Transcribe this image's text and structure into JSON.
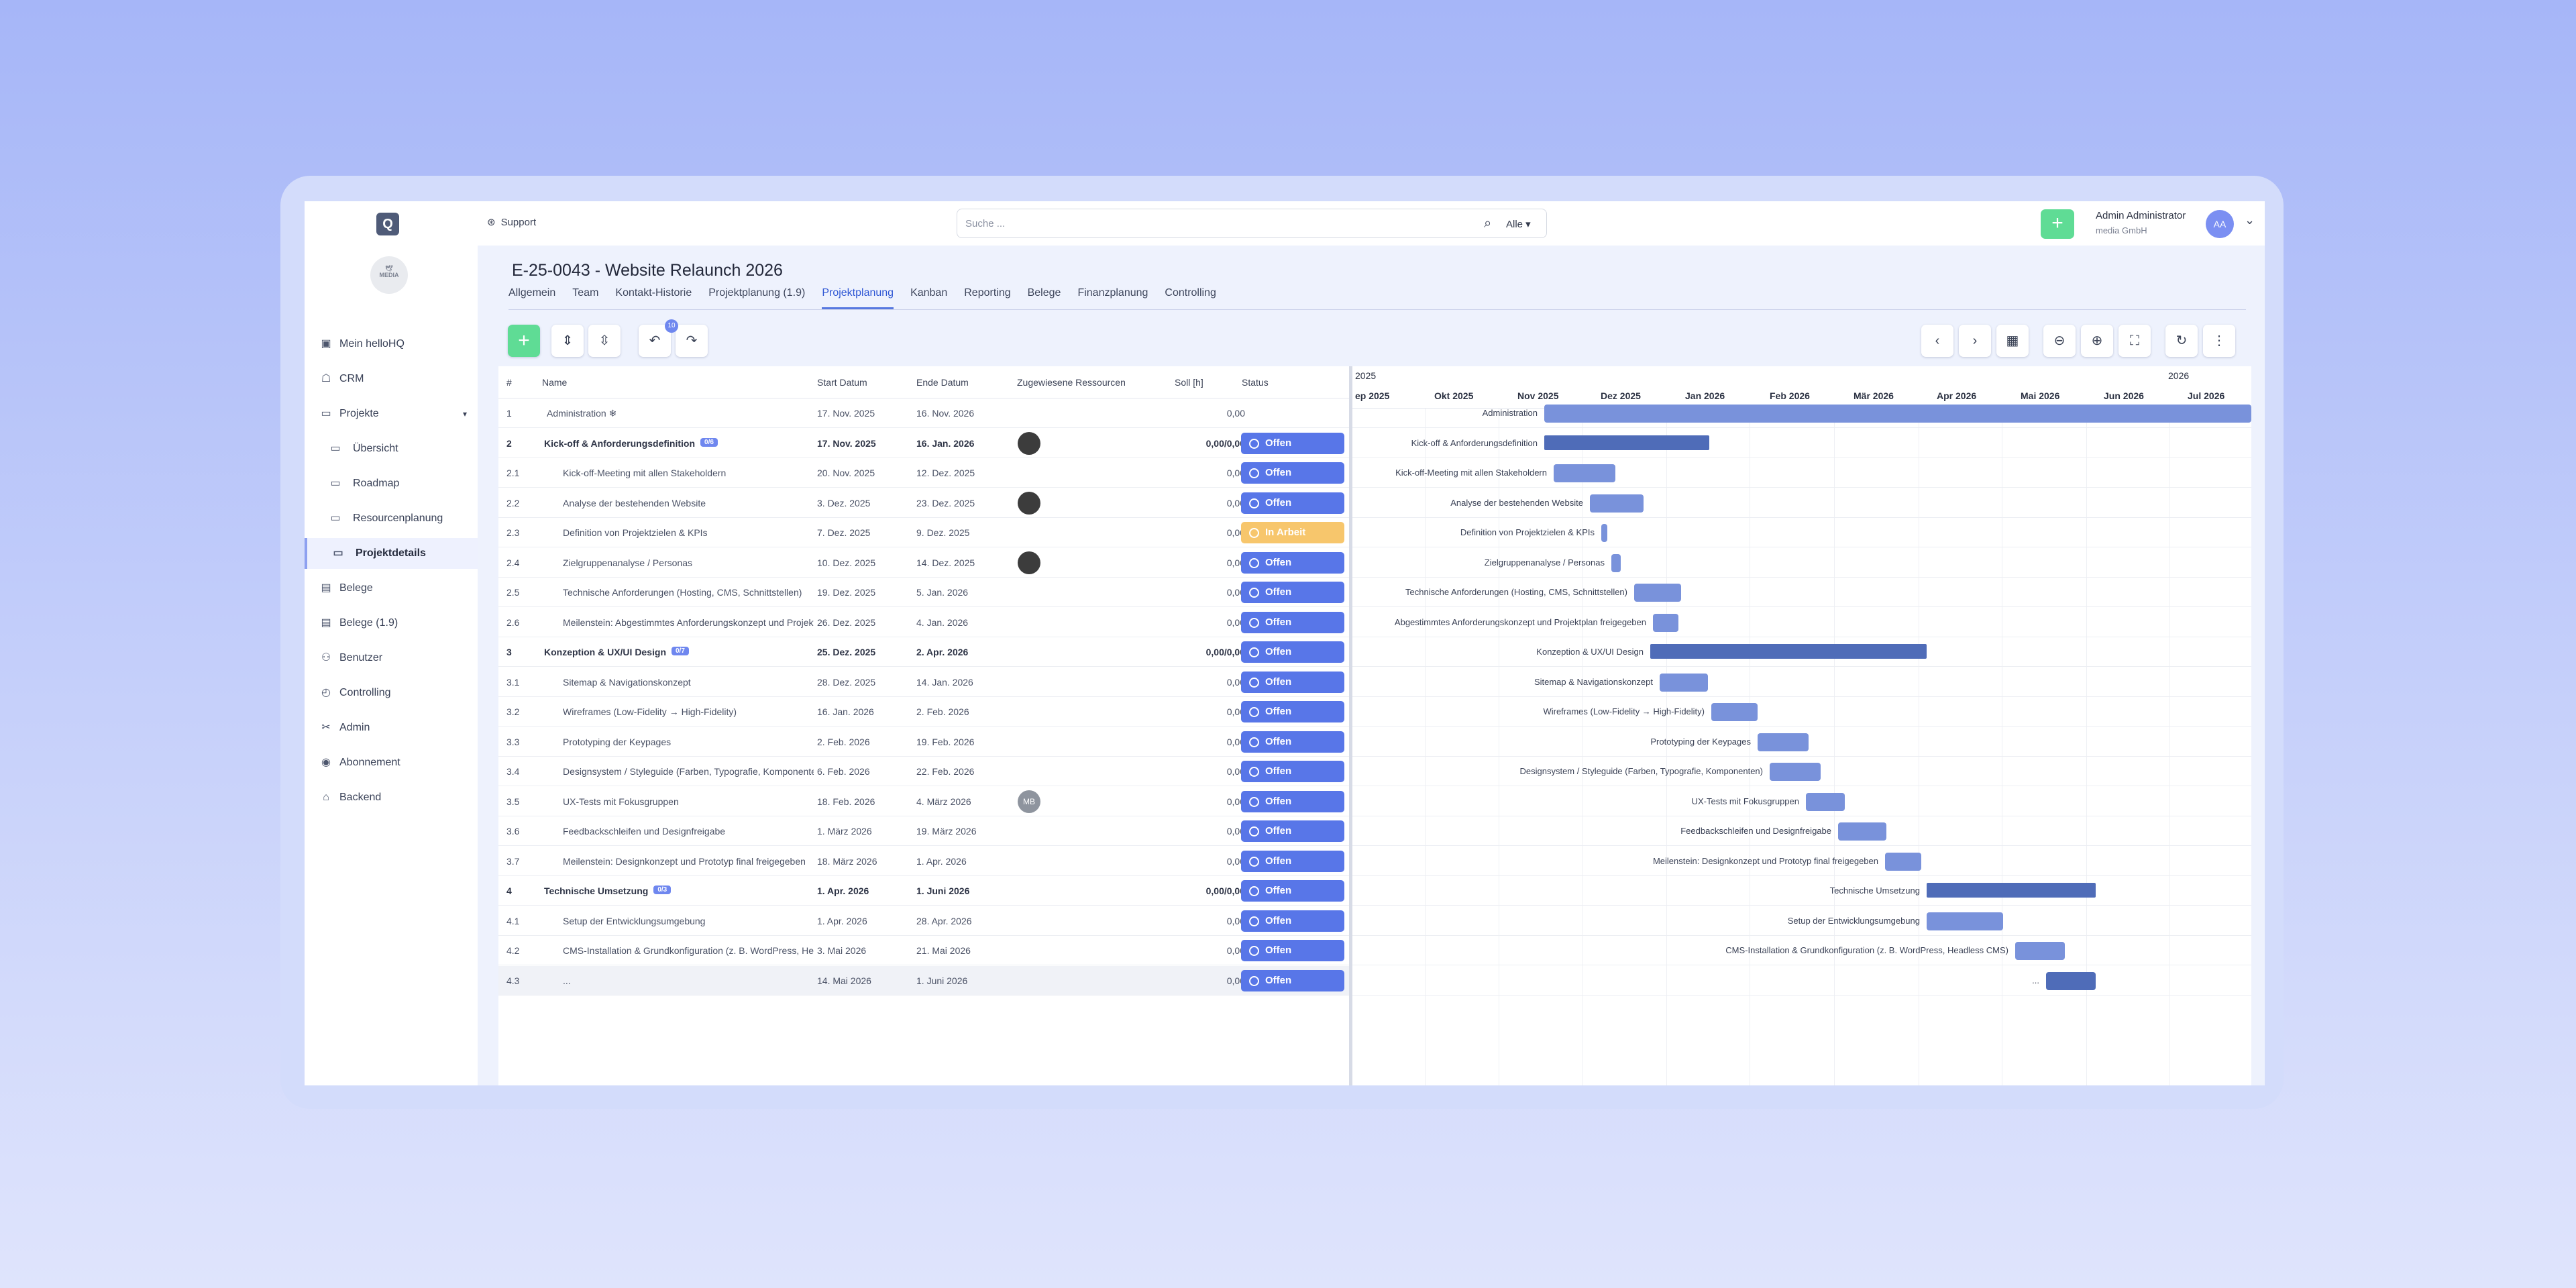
{
  "support": "Support",
  "search": {
    "placeholder": "Suche ...",
    "scope": "Alle"
  },
  "user": {
    "name": "Admin Administrator",
    "org": "media GmbH",
    "initials": "AA"
  },
  "sidebar": {
    "items": [
      {
        "label": "Mein helloHQ",
        "icon": "portfolio-icon"
      },
      {
        "label": "CRM",
        "icon": "contacts-icon"
      },
      {
        "label": "Projekte",
        "icon": "projects-icon"
      },
      {
        "label": "Übersicht",
        "icon": "monitor-icon"
      },
      {
        "label": "Roadmap",
        "icon": "roadmap-icon"
      },
      {
        "label": "Resourcenplanung",
        "icon": "resource-icon"
      },
      {
        "label": "Projektdetails",
        "icon": "details-icon"
      },
      {
        "label": "Belege",
        "icon": "document-icon"
      },
      {
        "label": "Belege (1.9)",
        "icon": "document-icon"
      },
      {
        "label": "Benutzer",
        "icon": "users-icon"
      },
      {
        "label": "Controlling",
        "icon": "controlling-icon"
      },
      {
        "label": "Admin",
        "icon": "tools-icon"
      },
      {
        "label": "Abonnement",
        "icon": "subscription-icon"
      },
      {
        "label": "Backend",
        "icon": "backend-icon"
      }
    ]
  },
  "project": {
    "title": "E-25-0043 - Website Relaunch 2026"
  },
  "tabs": [
    "Allgemein",
    "Team",
    "Kontakt-Historie",
    "Projektplanung (1.9)",
    "Projektplanung",
    "Kanban",
    "Reporting",
    "Belege",
    "Finanzplanung",
    "Controlling"
  ],
  "toolbar": {
    "redo_badge": "10"
  },
  "grid": {
    "headers": [
      "#",
      "Name",
      "Start Datum",
      "Ende Datum",
      "Zugewiesene Ressourcen",
      "Soll [h]",
      "Status"
    ],
    "rows": [
      {
        "num": "1",
        "name": "Administration ❄",
        "start": "17. Nov. 2025",
        "end": "16. Nov. 2026",
        "soll": "0,00",
        "status": ""
      },
      {
        "num": "2",
        "name": "Kick-off & Anforderungsdefinition",
        "count": "0/6",
        "start": "17. Nov. 2025",
        "end": "16. Jan. 2026",
        "soll": "0,00/0,00",
        "status": "Offen",
        "group": true,
        "res": "photo"
      },
      {
        "num": "2.1",
        "name": "Kick-off-Meeting mit allen Stakeholdern",
        "start": "20. Nov. 2025",
        "end": "12. Dez. 2025",
        "soll": "0,00",
        "status": "Offen"
      },
      {
        "num": "2.2",
        "name": "Analyse der bestehenden Website",
        "start": "3. Dez. 2025",
        "end": "23. Dez. 2025",
        "soll": "0,00",
        "status": "Offen",
        "res": "photo"
      },
      {
        "num": "2.3",
        "name": "Definition von Projektzielen & KPIs",
        "start": "7. Dez. 2025",
        "end": "9. Dez. 2025",
        "soll": "0,00",
        "status": "In Arbeit"
      },
      {
        "num": "2.4",
        "name": "Zielgruppenanalyse / Personas",
        "start": "10. Dez. 2025",
        "end": "14. Dez. 2025",
        "soll": "0,00",
        "status": "Offen",
        "res": "photo"
      },
      {
        "num": "2.5",
        "name": "Technische Anforderungen (Hosting, CMS, Schnittstellen)",
        "start": "19. Dez. 2025",
        "end": "5. Jan. 2026",
        "soll": "0,00",
        "status": "Offen"
      },
      {
        "num": "2.6",
        "name": "Meilenstein: Abgestimmtes Anforderungskonzept und Projektplan freigegeben",
        "start": "26. Dez. 2025",
        "end": "4. Jan. 2026",
        "soll": "0,00",
        "status": "Offen"
      },
      {
        "num": "3",
        "name": "Konzeption & UX/UI Design",
        "count": "0/7",
        "start": "25. Dez. 2025",
        "end": "2. Apr. 2026",
        "soll": "0,00/0,00",
        "status": "Offen",
        "group": true
      },
      {
        "num": "3.1",
        "name": "Sitemap & Navigationskonzept",
        "start": "28. Dez. 2025",
        "end": "14. Jan. 2026",
        "soll": "0,00",
        "status": "Offen"
      },
      {
        "num": "3.2",
        "name": "Wireframes (Low-Fidelity → High-Fidelity)",
        "start": "16. Jan. 2026",
        "end": "2. Feb. 2026",
        "soll": "0,00",
        "status": "Offen"
      },
      {
        "num": "3.3",
        "name": "Prototyping der Keypages",
        "start": "2. Feb. 2026",
        "end": "19. Feb. 2026",
        "soll": "0,00",
        "status": "Offen"
      },
      {
        "num": "3.4",
        "name": "Designsystem / Styleguide (Farben, Typografie, Komponenten)",
        "start": "6. Feb. 2026",
        "end": "22. Feb. 2026",
        "soll": "0,00",
        "status": "Offen"
      },
      {
        "num": "3.5",
        "name": "UX-Tests mit Fokusgruppen",
        "start": "18. Feb. 2026",
        "end": "4. März 2026",
        "soll": "0,00",
        "status": "Offen",
        "res": "MB"
      },
      {
        "num": "3.6",
        "name": "Feedbackschleifen und Designfreigabe",
        "start": "1. März 2026",
        "end": "19. März 2026",
        "soll": "0,00",
        "status": "Offen"
      },
      {
        "num": "3.7",
        "name": "Meilenstein: Designkonzept und Prototyp final freigegeben",
        "start": "18. März 2026",
        "end": "1. Apr. 2026",
        "soll": "0,00",
        "status": "Offen"
      },
      {
        "num": "4",
        "name": "Technische Umsetzung",
        "count": "0/3",
        "start": "1. Apr. 2026",
        "end": "1. Juni 2026",
        "soll": "0,00/0,00",
        "status": "Offen",
        "group": true
      },
      {
        "num": "4.1",
        "name": "Setup der Entwicklungsumgebung",
        "start": "1. Apr. 2026",
        "end": "28. Apr. 2026",
        "soll": "0,00",
        "status": "Offen"
      },
      {
        "num": "4.2",
        "name": "CMS-Installation & Grundkonfiguration (z. B. WordPress, Headless CMS)",
        "start": "3. Mai 2026",
        "end": "21. Mai 2026",
        "soll": "0,00",
        "status": "Offen"
      },
      {
        "num": "4.3",
        "name": "...",
        "start": "14. Mai 2026",
        "end": "1. Juni 2026",
        "soll": "0,00",
        "status": "Offen"
      }
    ]
  },
  "gantt": {
    "years": [
      "2025",
      "2026"
    ],
    "months": [
      "ep 2025",
      "Okt 2025",
      "Nov 2025",
      "Dez 2025",
      "Jan 2026",
      "Feb 2026",
      "Mär 2026",
      "Apr 2026",
      "Mai 2026",
      "Jun 2026",
      "Jul 2026"
    ],
    "labels": [
      "Administration",
      "Kick-off & Anforderungsdefinition",
      "Kick-off-Meeting mit allen Stakeholdern",
      "Analyse der bestehenden Website",
      "Definition von Projektzielen & KPIs",
      "Zielgruppenanalyse / Personas",
      "Technische Anforderungen (Hosting, CMS, Schnittstellen)",
      "Abgestimmtes Anforderungskonzept und Projektplan freigegeben",
      "Konzeption & UX/UI Design",
      "Sitemap & Navigationskonzept",
      "Wireframes (Low-Fidelity → High-Fidelity)",
      "Prototyping der Keypages",
      "Designsystem / Styleguide (Farben, Typografie, Komponenten)",
      "UX-Tests mit Fokusgruppen",
      "Feedbackschleifen und Designfreigabe",
      "Meilenstein: Designkonzept und Prototyp final freigegeben",
      "Technische Umsetzung",
      "Setup der Entwicklungsumgebung",
      "CMS-Installation & Grundkonfiguration (z. B. WordPress, Headless CMS)",
      "..."
    ]
  }
}
